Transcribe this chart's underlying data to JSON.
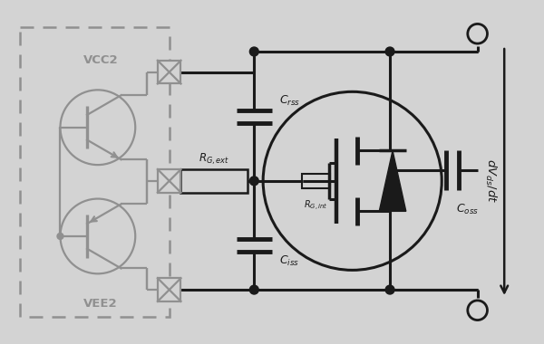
{
  "bg_color": "#d3d3d3",
  "dc": "#1a1a1a",
  "gc": "#909090",
  "figsize": [
    6.0,
    3.8
  ],
  "dpi": 100,
  "labels": {
    "VCC2": "VCC2",
    "VEE2": "VEE2",
    "Crss": "$C_{rss}$",
    "Ciss": "$C_{iss}$",
    "Coss": "$C_{oss}$",
    "RGext": "$R_{G,ext}$",
    "RGint": "$R_{G,int}$",
    "dvdt": "$dV_{ds}/dt$"
  }
}
